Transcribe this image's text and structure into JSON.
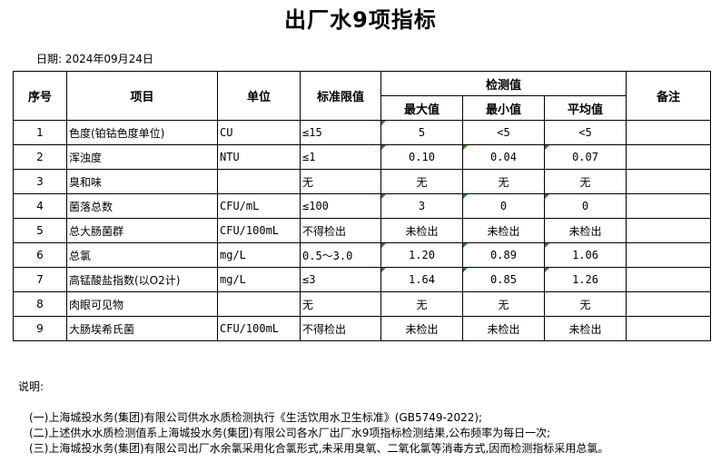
{
  "title": "出厂水9项指标",
  "date": "日期: 2024年09月24日",
  "headers": {
    "seq": "序号",
    "item": "项目",
    "unit": "单位",
    "limit": "标准限值",
    "measured": "检测值",
    "max": "最大值",
    "min": "最小值",
    "avg": "平均值",
    "remark": "备注"
  },
  "rows": [
    {
      "seq": "1",
      "item": "色度(铂钴色度单位)",
      "unit": "CU",
      "limit": "≤15",
      "max": "5",
      "min": "<5",
      "avg": "<5",
      "remark": "",
      "flags": [
        1,
        0,
        0
      ]
    },
    {
      "seq": "2",
      "item": "浑浊度",
      "unit": "NTU",
      "limit": "≤1",
      "max": "0.10",
      "min": "0.04",
      "avg": "0.07",
      "remark": "",
      "flags": [
        1,
        1,
        1
      ]
    },
    {
      "seq": "3",
      "item": "臭和味",
      "unit": "",
      "limit": "无",
      "max": "无",
      "min": "无",
      "avg": "无",
      "remark": "",
      "flags": [
        0,
        0,
        0
      ]
    },
    {
      "seq": "4",
      "item": "菌落总数",
      "unit": "CFU/mL",
      "limit": "≤100",
      "max": "3",
      "min": "0",
      "avg": "0",
      "remark": "",
      "flags": [
        1,
        1,
        1
      ]
    },
    {
      "seq": "5",
      "item": "总大肠菌群",
      "unit": "CFU/100mL",
      "limit": "不得检出",
      "max": "未检出",
      "min": "未检出",
      "avg": "未检出",
      "remark": "",
      "flags": [
        0,
        0,
        0
      ]
    },
    {
      "seq": "6",
      "item": "总氯",
      "unit": "mg/L",
      "limit": "0.5～3.0",
      "max": "1.20",
      "min": "0.89",
      "avg": "1.06",
      "remark": "",
      "flags": [
        1,
        1,
        1
      ]
    },
    {
      "seq": "7",
      "item": "高锰酸盐指数(以O2计)",
      "unit": "mg/L",
      "limit": "≤3",
      "max": "1.64",
      "min": "0.85",
      "avg": "1.26",
      "remark": "",
      "flags": [
        1,
        1,
        1
      ]
    },
    {
      "seq": "8",
      "item": "肉眼可见物",
      "unit": "",
      "limit": "无",
      "max": "无",
      "min": "无",
      "avg": "无",
      "remark": "",
      "flags": [
        0,
        0,
        0
      ]
    },
    {
      "seq": "9",
      "item": "大肠埃希氏菌",
      "unit": "CFU/100mL",
      "limit": "不得检出",
      "max": "未检出",
      "min": "未检出",
      "avg": "未检出",
      "remark": "",
      "flags": [
        0,
        0,
        0
      ]
    }
  ],
  "notes": {
    "heading": "说明:",
    "items": [
      "(一)上海城投水务(集团)有限公司供水水质检测执行《生活饮用水卫生标准》(GB5749-2022);",
      "(二)上述供水水质检测值系上海城投水务(集团)有限公司各水厂出厂水9项指标检测结果,公布频率为每日一次;",
      "(三)上海城投水务(集团)有限公司出厂水余氯采用化合氯形式,未采用臭氧、二氧化氯等消毒方式,因而检测指标采用总氯。"
    ]
  },
  "colors": {
    "indicator": "#1a8a1a"
  }
}
